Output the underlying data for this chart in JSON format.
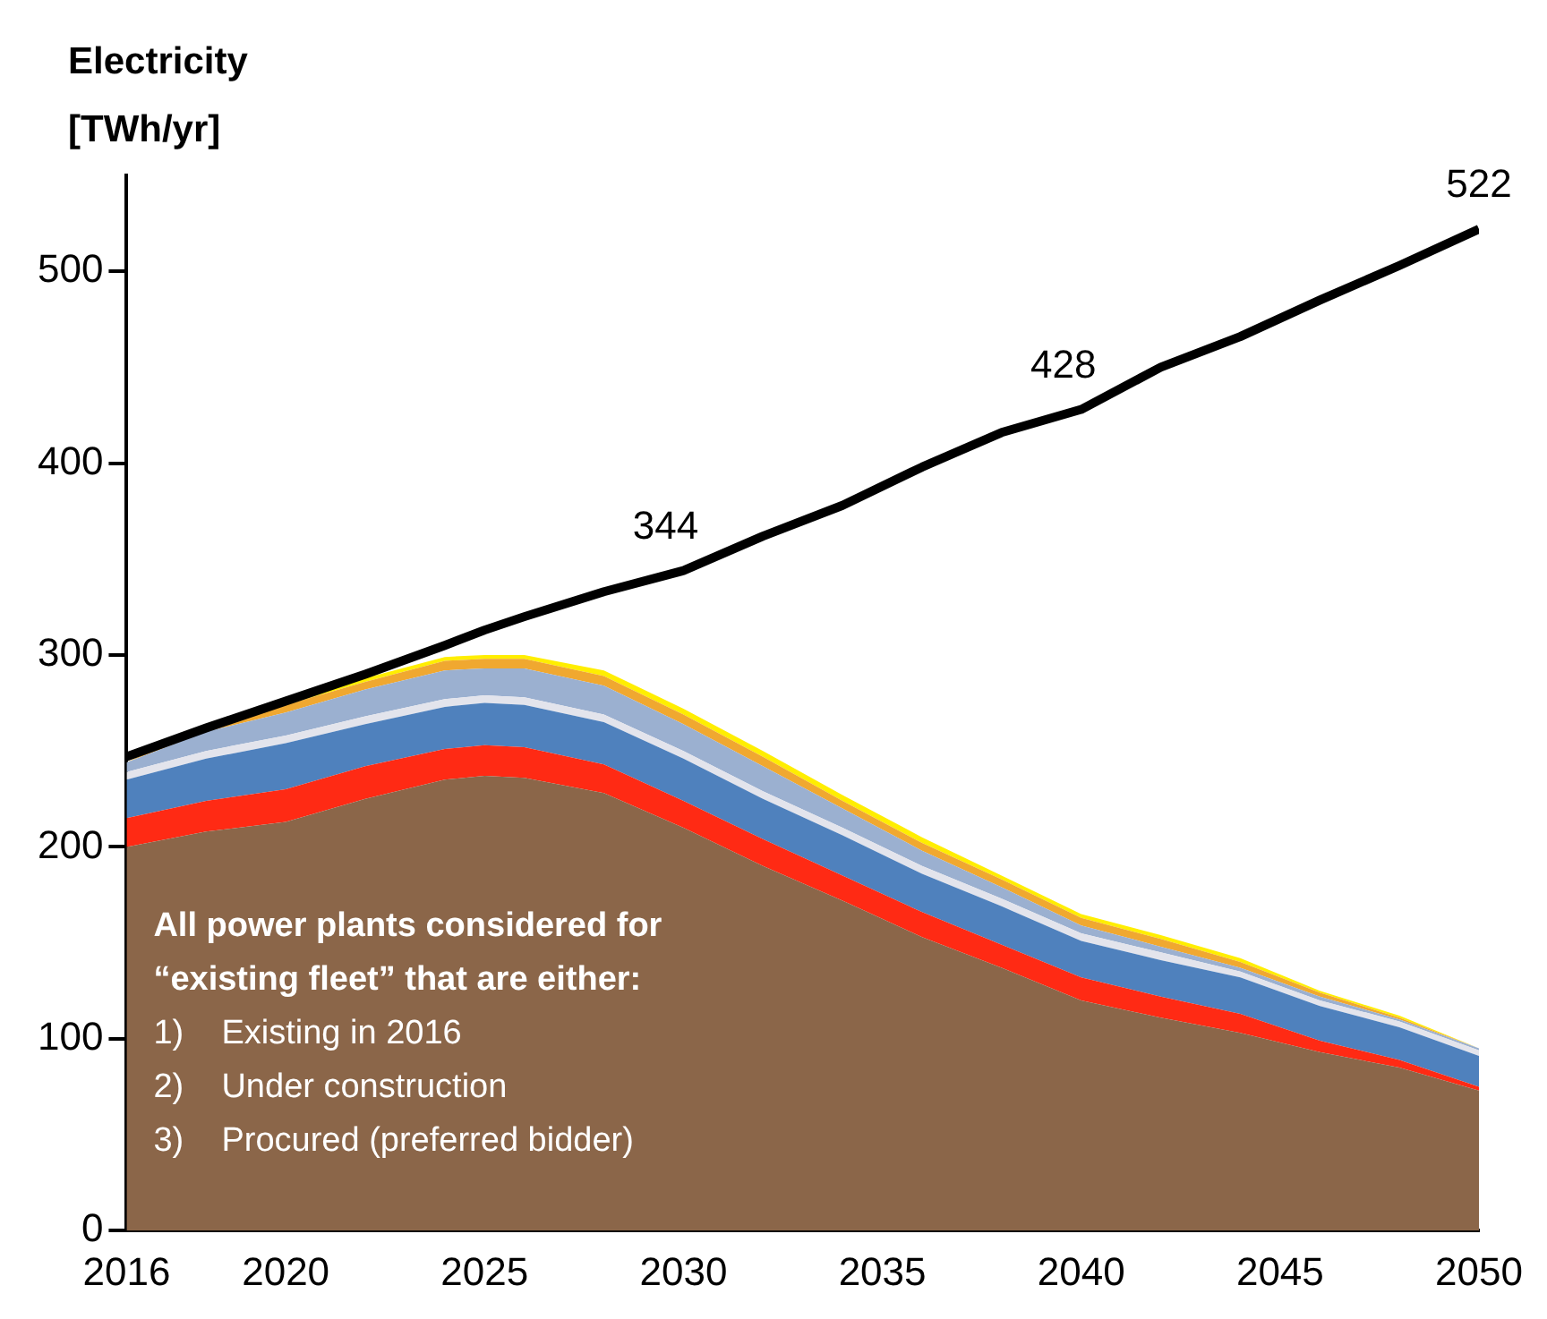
{
  "chart_data": {
    "type": "area",
    "stacked": true,
    "ylabel": "Electricity [TWh/yr]",
    "x": [
      2016,
      2018,
      2020,
      2022,
      2024,
      2025,
      2026,
      2028,
      2030,
      2032,
      2034,
      2036,
      2038,
      2040,
      2042,
      2044,
      2046,
      2048,
      2050
    ],
    "series": [
      {
        "color": "#8b6649",
        "values": [
          200,
          208,
          213,
          225,
          235,
          237,
          236,
          228,
          210,
          190,
          172,
          153,
          137,
          120,
          111,
          103,
          93,
          85,
          73
        ]
      },
      {
        "color": "#ff2a14",
        "values": [
          15,
          16,
          17,
          17,
          16,
          16,
          16,
          15,
          14,
          14,
          13,
          13,
          12,
          12,
          11,
          10,
          6,
          4,
          2
        ]
      },
      {
        "color": "#4f81bd",
        "values": [
          20,
          22,
          24,
          22,
          22,
          22,
          22,
          22,
          22,
          21,
          21,
          20,
          20,
          19,
          19,
          19,
          18,
          17,
          16
        ]
      },
      {
        "color": "#e3e4ec",
        "values": [
          4,
          4,
          4,
          4,
          4,
          4,
          4,
          4,
          4,
          4,
          4,
          4,
          4,
          4,
          4,
          3,
          3,
          3,
          3
        ]
      },
      {
        "color": "#9bb0d0",
        "values": [
          5,
          10,
          12,
          14,
          15,
          14,
          15,
          15,
          14,
          13,
          10,
          8,
          6,
          4,
          3,
          2,
          2,
          1,
          1
        ]
      },
      {
        "color": "#f0a830",
        "values": [
          0,
          3,
          4,
          4,
          5,
          5,
          5,
          5,
          5,
          5,
          4,
          4,
          4,
          4,
          4,
          3,
          2,
          1,
          0
        ]
      },
      {
        "color": "#ffee00",
        "values": [
          0,
          1,
          2,
          2,
          2,
          2,
          2,
          3,
          3,
          3,
          3,
          3,
          2,
          2,
          2,
          2,
          1,
          1,
          0
        ]
      },
      {
        "type": "line",
        "color": "#000000",
        "values": [
          247,
          262,
          276,
          290,
          305,
          313,
          320,
          333,
          344,
          362,
          378,
          398,
          416,
          428,
          450,
          466,
          485,
          503,
          522
        ]
      }
    ],
    "xlim": [
      2016,
      2050
    ],
    "xticks": [
      2016,
      2020,
      2025,
      2030,
      2035,
      2040,
      2045,
      2050
    ],
    "ylim": [
      0,
      550
    ],
    "yticks": [
      0,
      100,
      200,
      300,
      400,
      500
    ],
    "annotations": [
      "All power plants considered for “existing fleet” that are either:",
      "1)    Existing in 2016",
      "2)    Under construction",
      "3)    Procured (preferred bidder)",
      {
        "text": "344",
        "x": 2030,
        "y": 344
      },
      {
        "text": "428",
        "x": 2040,
        "y": 428
      },
      {
        "text": "522",
        "x": 2050,
        "y": 522
      }
    ]
  }
}
